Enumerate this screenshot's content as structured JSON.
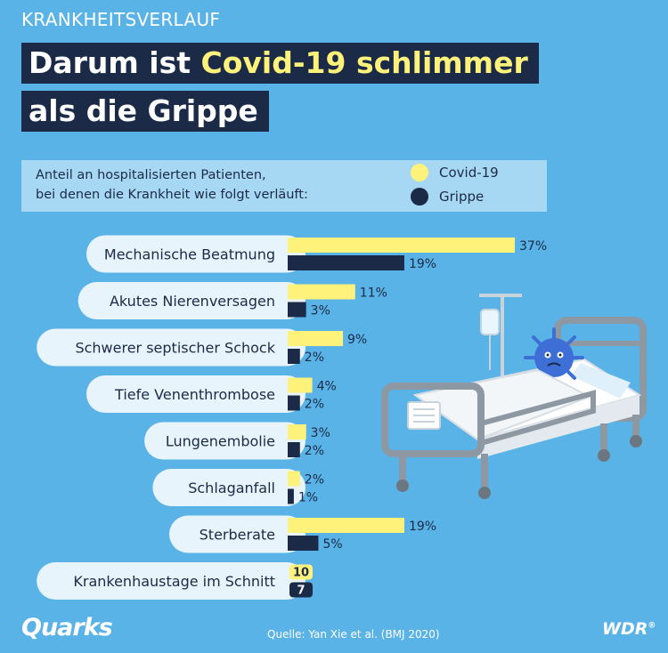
{
  "header": {
    "kicker": "KRANKHEITSVERLAUF",
    "title_pre": "Darum ist ",
    "title_highlight": "Covid-19 schlimmer",
    "title_line2": "als die Grippe"
  },
  "legend": {
    "text_line1": "Anteil an hospitalisierten Patienten,",
    "text_line2": "bei denen die Krankheit wie folgt verläuft:",
    "covid_label": "Covid-19",
    "flu_label": "Grippe"
  },
  "colors": {
    "background": "#5ab3e6",
    "covid": "#fff27a",
    "flu": "#1b2a47",
    "pill": "#e8f4fb",
    "legend_box": "#a7d8f3"
  },
  "chart_data": {
    "type": "bar",
    "orientation": "horizontal",
    "categories": [
      "Mechanische Beatmung",
      "Akutes Nierenversagen",
      "Schwerer septischer Schock",
      "Tiefe Venenthrombose",
      "Lungenembolie",
      "Schlaganfall",
      "Sterberate",
      "Krankenhaustage im Schnitt"
    ],
    "series": [
      {
        "name": "Covid-19",
        "values": [
          37,
          11,
          9,
          4,
          3,
          2,
          19,
          10
        ],
        "labels": [
          "37%",
          "11%",
          "9%",
          "4%",
          "3%",
          "2%",
          "19%",
          "10"
        ]
      },
      {
        "name": "Grippe",
        "values": [
          19,
          3,
          2,
          2,
          2,
          1,
          5,
          7
        ],
        "labels": [
          "19%",
          "3%",
          "2%",
          "2%",
          "2%",
          "1%",
          "5%",
          "7"
        ]
      }
    ],
    "title": "Anteil an hospitalisierten Patienten, bei denen die Krankheit wie folgt verläuft:",
    "xlim": [
      0,
      37
    ]
  },
  "footer": {
    "brand": "Quarks",
    "source": "Quelle: Yan Xie et al. (BMJ 2020)",
    "broadcaster": "WDR",
    "registered": "®"
  }
}
